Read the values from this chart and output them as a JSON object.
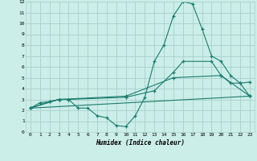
{
  "xlabel": "Humidex (Indice chaleur)",
  "bg_color": "#cceee8",
  "grid_color": "#aad4ce",
  "line_color": "#1a7a6e",
  "xlim": [
    -0.5,
    23.5
  ],
  "ylim": [
    0,
    12
  ],
  "xticks": [
    0,
    1,
    2,
    3,
    4,
    5,
    6,
    7,
    8,
    9,
    10,
    11,
    12,
    13,
    14,
    15,
    16,
    17,
    18,
    19,
    20,
    21,
    22,
    23
  ],
  "yticks": [
    0,
    1,
    2,
    3,
    4,
    5,
    6,
    7,
    8,
    9,
    10,
    11,
    12
  ],
  "line1_x": [
    0,
    1,
    2,
    3,
    4,
    5,
    6,
    7,
    8,
    9,
    10,
    11,
    12,
    13,
    14,
    15,
    16,
    17,
    18,
    19,
    20,
    21,
    22,
    23
  ],
  "line1_y": [
    2.2,
    2.7,
    2.8,
    3.0,
    3.0,
    2.2,
    2.2,
    1.5,
    1.3,
    0.6,
    0.5,
    1.5,
    3.2,
    6.5,
    8.0,
    10.7,
    12.0,
    11.8,
    9.5,
    7.0,
    6.5,
    5.2,
    4.5,
    4.6
  ],
  "line2_x": [
    0,
    2,
    3,
    4,
    10,
    13,
    15,
    16,
    19,
    20,
    21,
    22,
    23
  ],
  "line2_y": [
    2.2,
    2.8,
    3.0,
    3.0,
    3.2,
    3.8,
    5.5,
    6.5,
    6.5,
    5.2,
    4.5,
    4.5,
    3.3
  ],
  "line3_x": [
    0,
    3,
    10,
    15,
    20,
    23
  ],
  "line3_y": [
    2.2,
    3.0,
    3.3,
    5.0,
    5.2,
    3.3
  ],
  "line4_x": [
    0,
    23
  ],
  "line4_y": [
    2.2,
    3.3
  ]
}
